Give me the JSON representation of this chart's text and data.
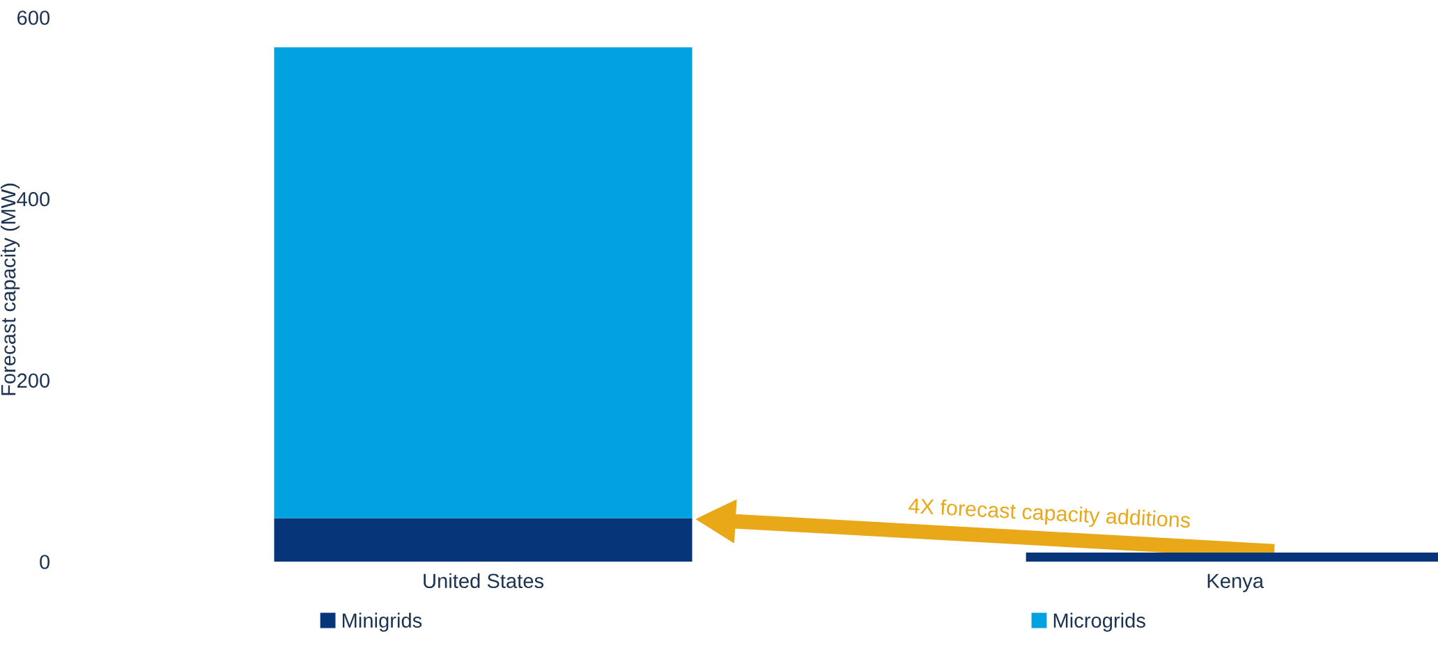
{
  "chart_data": {
    "type": "bar",
    "stacked": true,
    "ylabel": "Forecast capacity (MW)",
    "categories": [
      "United States",
      "Kenya"
    ],
    "series": [
      {
        "name": "Minigrids",
        "color": "#06357a",
        "values": [
          48,
          10
        ]
      },
      {
        "name": "Microgrids",
        "color": "#00a3e0",
        "values": [
          519,
          0
        ]
      }
    ],
    "ylim": [
      0,
      600
    ],
    "yticks": [
      0,
      200,
      400,
      600
    ],
    "grid": false,
    "legend": "bottom",
    "annotations": [
      "4X forecast capacity additions"
    ]
  }
}
